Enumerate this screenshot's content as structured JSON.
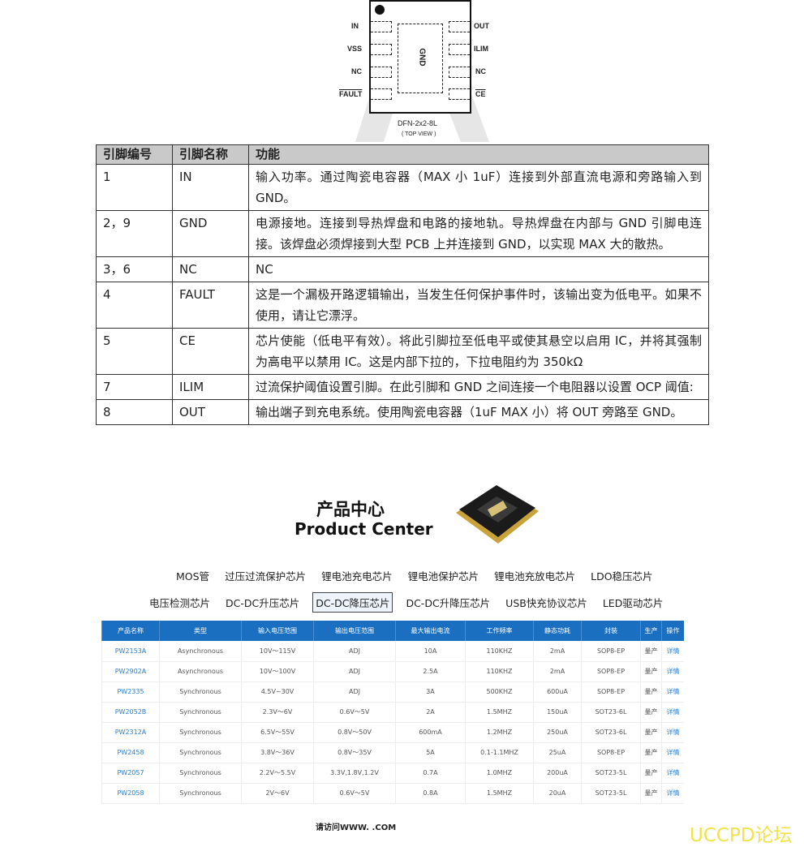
{
  "pinout": {
    "left_pins": [
      "IN",
      "VSS",
      "NC",
      "FAULT"
    ],
    "right_pins": [
      "OUT",
      "ILIM",
      "NC",
      "CE"
    ],
    "pad": "GND",
    "package": "DFN-2x2-8L",
    "view": "( TOP VIEW )"
  },
  "pin_table": {
    "headers": [
      "引脚编号",
      "引脚名称",
      "功能"
    ],
    "rows": [
      [
        "1",
        "IN",
        "输入功率。通过陶瓷电容器（MAX 小 1uF）连接到外部直流电源和旁路输入到 GND。"
      ],
      [
        "2，9",
        "GND",
        "电源接地。连接到导热焊盘和电路的接地轨。导热焊盘在内部与 GND 引脚电连接。该焊盘必须焊接到大型 PCB 上并连接到 GND，以实现 MAX 大的散热。"
      ],
      [
        "3，6",
        "NC",
        "NC"
      ],
      [
        "4",
        "FAULT",
        "这是一个漏极开路逻辑输出，当发生任何保护事件时，该输出变为低电平。如果不使用，请让它漂浮。"
      ],
      [
        "5",
        "CE",
        "芯片使能（低电平有效）。将此引脚拉至低电平或使其悬空以启用 IC，并将其强制为高电平以禁用 IC。这是内部下拉的，下拉电阻约为 350kΩ"
      ],
      [
        "7",
        "ILIM",
        "过流保护阈值设置引脚。在此引脚和 GND 之间连接一个电阻器以设置 OCP 阈值:"
      ],
      [
        "8",
        "OUT",
        "输出端子到充电系统。使用陶瓷电容器（1uF MAX 小）将 OUT 旁路至 GND。"
      ]
    ]
  },
  "product_center": {
    "title_cn": "产品中心",
    "title_en": "Product Center",
    "nav_row1": [
      "MOS管",
      "过压过流保护芯片",
      "锂电池充电芯片",
      "锂电池保护芯片",
      "锂电池充放电芯片",
      "LDO稳压芯片"
    ],
    "nav_row2": [
      "电压检测芯片",
      "DC-DC升压芯片",
      "DC-DC降压芯片",
      "DC-DC升降压芯片",
      "USB快充协议芯片",
      "LED驱动芯片"
    ],
    "selected": "DC-DC降压芯片",
    "table_headers": [
      "产品名称",
      "类型",
      "输入电压范围",
      "输出电压范围",
      "最大输出电流",
      "工作频率",
      "静态功耗",
      "封装",
      "生产",
      "操作"
    ],
    "rows": [
      [
        "PW2153A",
        "Asynchronous",
        "10V～115V",
        "ADJ",
        "10A",
        "110KHZ",
        "2mA",
        "SOP8-EP",
        "量产",
        "详情"
      ],
      [
        "PW2902A",
        "Asynchronous",
        "10V～100V",
        "ADJ",
        "2.5A",
        "110KHZ",
        "2mA",
        "SOP8-EP",
        "量产",
        "详情"
      ],
      [
        "PW2335",
        "Synchronous",
        "4.5V~30V",
        "ADJ",
        "3A",
        "500KHZ",
        "600uA",
        "SOP8-EP",
        "量产",
        "详情"
      ],
      [
        "PW2052B",
        "Synchronous",
        "2.3V～6V",
        "0.6V～5V",
        "2A",
        "1.5MHZ",
        "150uA",
        "SOT23-6L",
        "量产",
        "详情"
      ],
      [
        "PW2312A",
        "Synchronous",
        "6.5V～55V",
        "0.8V～50V",
        "600mA",
        "1.2MHZ",
        "250uA",
        "SOT23-6L",
        "量产",
        "详情"
      ],
      [
        "PW2458",
        "Synchronous",
        "3.8V～36V",
        "0.8V～35V",
        "5A",
        "0.1-1.1MHZ",
        "25uA",
        "SOP8-EP",
        "量产",
        "详情"
      ],
      [
        "PW2057",
        "Synchronous",
        "2.2V～5.5V",
        "3.3V,1.8V,1.2V",
        "0.7A",
        "1.0MHZ",
        "200uA",
        "SOT23-5L",
        "量产",
        "详情"
      ],
      [
        "PW2058",
        "Synchronous",
        "2V～6V",
        "0.6V～5V",
        "0.8A",
        "1.5MHZ",
        "20uA",
        "SOT23-5L",
        "量产",
        "详情"
      ]
    ],
    "visit_text": "请访问WWW.      .COM"
  },
  "watermark": "UCCPD论坛",
  "colors": {
    "table_header": "#1a6fc0",
    "link": "#2a7fd0",
    "watermark": "#f1e24a"
  }
}
